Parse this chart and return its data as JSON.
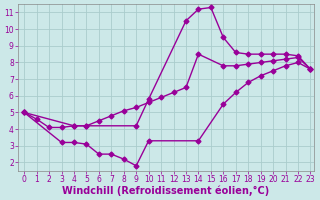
{
  "xlabel": "Windchill (Refroidissement éolien,°C)",
  "background_color": "#cce8e8",
  "grid_color": "#aacccc",
  "line_color": "#990099",
  "xlim_min": -0.5,
  "xlim_max": 23.3,
  "ylim_min": 1.5,
  "ylim_max": 11.5,
  "xticks": [
    0,
    1,
    2,
    3,
    4,
    5,
    6,
    7,
    8,
    9,
    10,
    11,
    12,
    13,
    14,
    15,
    16,
    17,
    18,
    19,
    20,
    21,
    22,
    23
  ],
  "yticks": [
    2,
    3,
    4,
    5,
    6,
    7,
    8,
    9,
    10,
    11
  ],
  "curve1_x": [
    0,
    1,
    2,
    3,
    4,
    5,
    9,
    10,
    13,
    14,
    15,
    16,
    17,
    18,
    19,
    20,
    21,
    22,
    23
  ],
  "curve1_y": [
    5.0,
    4.6,
    4.1,
    4.1,
    4.2,
    4.2,
    4.2,
    5.8,
    10.5,
    11.2,
    11.3,
    9.5,
    8.6,
    8.5,
    8.5,
    8.5,
    8.5,
    8.4,
    7.6
  ],
  "curve2_x": [
    0,
    3,
    4,
    5,
    6,
    7,
    8,
    9,
    10,
    14,
    16,
    17,
    18,
    19,
    20,
    21,
    22,
    23
  ],
  "curve2_y": [
    5.0,
    3.2,
    3.2,
    3.1,
    2.5,
    2.5,
    2.2,
    1.8,
    3.3,
    3.3,
    5.5,
    6.2,
    6.8,
    7.2,
    7.5,
    7.8,
    8.0,
    7.6
  ],
  "curve3_x": [
    0,
    4,
    5,
    6,
    7,
    8,
    9,
    10,
    11,
    12,
    13,
    14,
    16,
    17,
    18,
    19,
    20,
    21,
    22,
    23
  ],
  "curve3_y": [
    5.0,
    4.2,
    4.2,
    4.5,
    4.8,
    5.1,
    5.3,
    5.6,
    5.9,
    6.2,
    6.5,
    8.5,
    7.8,
    7.8,
    7.9,
    8.0,
    8.1,
    8.2,
    8.3,
    7.6
  ],
  "marker": "D",
  "marker_size": 2.5,
  "line_width": 1.0,
  "tick_fontsize": 5.5,
  "xlabel_fontsize": 7.0,
  "xlabel_color": "#990099",
  "tick_color": "#990099"
}
